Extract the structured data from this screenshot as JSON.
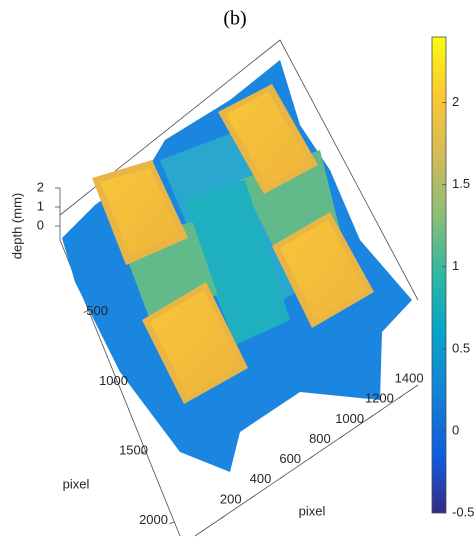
{
  "chart_data": {
    "type": "surface",
    "title": "(b)",
    "zlabel": "depth (mm)",
    "ylabel": "pixel",
    "xlabel": "pixel",
    "xlim": [
      0,
      1500
    ],
    "xticks": [
      200,
      400,
      600,
      800,
      1000,
      1200,
      1400
    ],
    "ylim": [
      0,
      2100
    ],
    "yticks": [
      500,
      1000,
      1500,
      2000
    ],
    "zlim": [
      -0.5,
      2.4
    ],
    "zticks": [
      0,
      1,
      2
    ],
    "colorbar": {
      "clim": [
        -0.5,
        2.4
      ],
      "ticks": [
        -0.5,
        0,
        0.5,
        1,
        1.5,
        2
      ],
      "colormap": "parula"
    }
  }
}
